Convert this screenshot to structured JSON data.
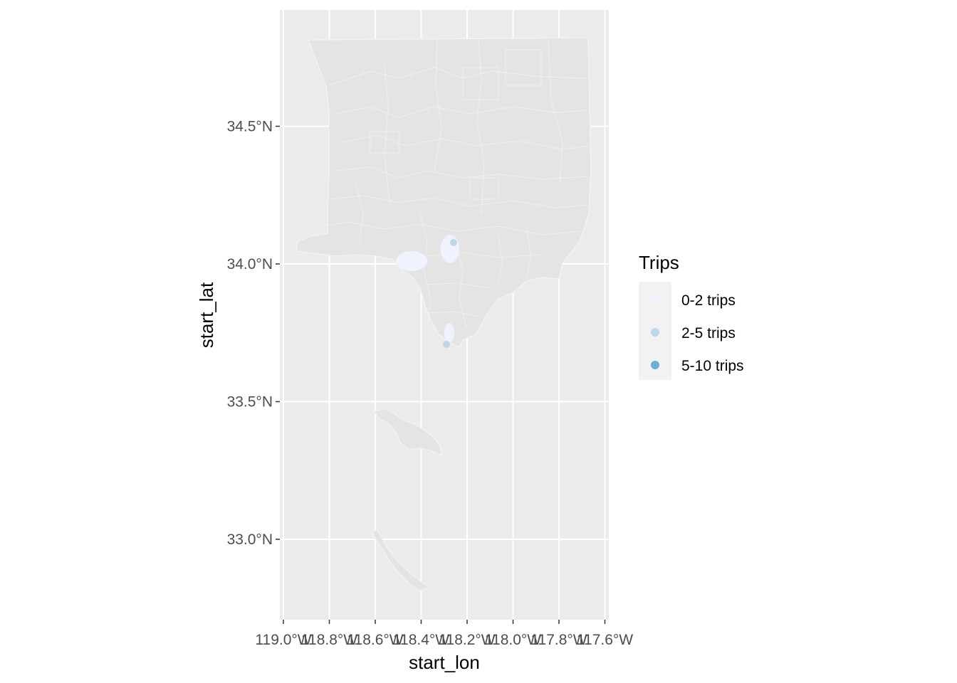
{
  "chart_data": {
    "type": "map",
    "xlabel": "start_lon",
    "ylabel": "start_lat",
    "x_ticks": [
      "119.0°W",
      "118.8°W",
      "118.6°W",
      "118.4°W",
      "118.2°W",
      "118.0°W",
      "117.8°W",
      "117.6°W"
    ],
    "y_ticks": [
      "33.0°N",
      "33.5°N",
      "34.0°N",
      "34.5°N"
    ],
    "xlim": [
      -119.0,
      -117.6
    ],
    "ylim": [
      32.75,
      34.9
    ],
    "grid": true,
    "legend": {
      "title": "Trips",
      "position": "right",
      "entries": [
        {
          "label": "0-2 trips",
          "color": "#eff3ff"
        },
        {
          "label": "2-5 trips",
          "color": "#bdd7e7"
        },
        {
          "label": "5-10 trips",
          "color": "#6baed6"
        }
      ]
    },
    "colors": {
      "panel": "#ebebeb",
      "region_fill": "#e4e4e4",
      "region_border": "#f2f2f2",
      "grid": "#ffffff"
    }
  }
}
